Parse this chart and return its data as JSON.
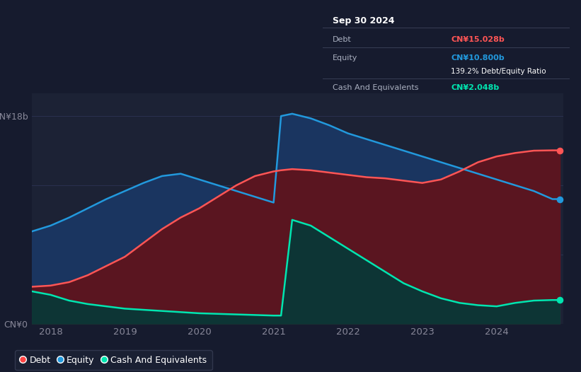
{
  "background_color": "#161b2e",
  "plot_bg_color": "#1c2235",
  "tooltip": {
    "date": "Sep 30 2024",
    "debt_label": "Debt",
    "debt_value": "CN¥15.028b",
    "equity_label": "Equity",
    "equity_value": "CN¥10.800b",
    "ratio_text": "139.2% Debt/Equity Ratio",
    "cash_label": "Cash And Equivalents",
    "cash_value": "CN¥2.048b"
  },
  "ylabel_top": "CN¥18b",
  "ylabel_bottom": "CN¥0",
  "x_ticks": [
    "2018",
    "2019",
    "2020",
    "2021",
    "2022",
    "2023",
    "2024"
  ],
  "legend": [
    {
      "label": "Debt",
      "color": "#ff4444"
    },
    {
      "label": "Equity",
      "color": "#2299dd"
    },
    {
      "label": "Cash And Equivalents",
      "color": "#00e5b0"
    }
  ],
  "debt_color": "#ff5555",
  "equity_color": "#2299dd",
  "cash_color": "#00e5b0",
  "debt_fill": "#5a1520",
  "equity_fill": "#1a3560",
  "cash_fill": "#0d3535",
  "years": [
    2017.75,
    2018.0,
    2018.25,
    2018.5,
    2018.75,
    2019.0,
    2019.25,
    2019.5,
    2019.75,
    2020.0,
    2020.25,
    2020.5,
    2020.75,
    2021.0,
    2021.1,
    2021.25,
    2021.5,
    2021.75,
    2022.0,
    2022.25,
    2022.5,
    2022.75,
    2023.0,
    2023.25,
    2023.5,
    2023.75,
    2024.0,
    2024.25,
    2024.5,
    2024.75,
    2024.85
  ],
  "debt": [
    3.2,
    3.3,
    3.6,
    4.2,
    5.0,
    5.8,
    7.0,
    8.2,
    9.2,
    10.0,
    11.0,
    12.0,
    12.8,
    13.2,
    13.3,
    13.4,
    13.3,
    13.1,
    12.9,
    12.7,
    12.6,
    12.4,
    12.2,
    12.5,
    13.2,
    14.0,
    14.5,
    14.8,
    15.0,
    15.028,
    15.028
  ],
  "equity": [
    8.0,
    8.5,
    9.2,
    10.0,
    10.8,
    11.5,
    12.2,
    12.8,
    13.0,
    12.5,
    12.0,
    11.5,
    11.0,
    10.5,
    18.0,
    18.2,
    17.8,
    17.2,
    16.5,
    16.0,
    15.5,
    15.0,
    14.5,
    14.0,
    13.5,
    13.0,
    12.5,
    12.0,
    11.5,
    10.8,
    10.8
  ],
  "cash": [
    2.8,
    2.5,
    2.0,
    1.7,
    1.5,
    1.3,
    1.2,
    1.1,
    1.0,
    0.9,
    0.85,
    0.8,
    0.75,
    0.7,
    0.7,
    9.0,
    8.5,
    7.5,
    6.5,
    5.5,
    4.5,
    3.5,
    2.8,
    2.2,
    1.8,
    1.6,
    1.5,
    1.8,
    2.0,
    2.048,
    2.048
  ],
  "ylim": [
    0,
    20
  ],
  "xlim": [
    2017.75,
    2024.9
  ],
  "grid_lines": [
    6.0,
    12.0,
    18.0
  ]
}
